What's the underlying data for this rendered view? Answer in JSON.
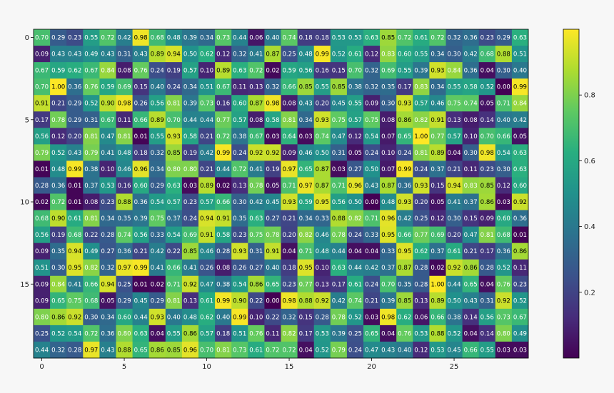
{
  "chart_data": {
    "type": "heatmap",
    "colormap": "viridis",
    "grid": false,
    "xticks": [
      0,
      5,
      10,
      15,
      20,
      25
    ],
    "yticks": [
      0,
      5,
      10,
      15
    ],
    "colorbar": {
      "position": "right",
      "ticks": [
        0.2,
        0.4,
        0.6,
        0.8
      ]
    },
    "values": [
      [
        0.7,
        0.29,
        0.23,
        0.55,
        0.72,
        0.42,
        0.98,
        0.68,
        0.48,
        0.39,
        0.34,
        0.73,
        0.44,
        0.06,
        0.4,
        0.74,
        0.18,
        0.18,
        0.53,
        0.53,
        0.63,
        0.85,
        0.72,
        0.61,
        0.72,
        0.32,
        0.36,
        0.23,
        0.29,
        0.63
      ],
      [
        0.09,
        0.43,
        0.43,
        0.49,
        0.43,
        0.31,
        0.43,
        0.89,
        0.94,
        0.5,
        0.62,
        0.12,
        0.32,
        0.41,
        0.87,
        0.25,
        0.48,
        0.99,
        0.52,
        0.61,
        0.12,
        0.83,
        0.6,
        0.55,
        0.34,
        0.3,
        0.42,
        0.68,
        0.88,
        0.51
      ],
      [
        0.67,
        0.59,
        0.62,
        0.67,
        0.84,
        0.08,
        0.76,
        0.24,
        0.19,
        0.57,
        0.1,
        0.89,
        0.63,
        0.72,
        0.02,
        0.59,
        0.56,
        0.16,
        0.15,
        0.7,
        0.32,
        0.69,
        0.55,
        0.39,
        0.93,
        0.84,
        0.36,
        0.04,
        0.3,
        0.4
      ],
      [
        0.7,
        1.0,
        0.36,
        0.76,
        0.59,
        0.69,
        0.15,
        0.4,
        0.24,
        0.34,
        0.51,
        0.67,
        0.11,
        0.13,
        0.32,
        0.66,
        0.85,
        0.55,
        0.85,
        0.38,
        0.32,
        0.35,
        0.17,
        0.83,
        0.34,
        0.55,
        0.58,
        0.52,
        0.0,
        0.99
      ],
      [
        0.91,
        0.21,
        0.29,
        0.52,
        0.9,
        0.98,
        0.26,
        0.56,
        0.81,
        0.39,
        0.73,
        0.16,
        0.6,
        0.87,
        0.98,
        0.08,
        0.43,
        0.2,
        0.45,
        0.55,
        0.09,
        0.3,
        0.93,
        0.57,
        0.46,
        0.75,
        0.74,
        0.05,
        0.71,
        0.84
      ],
      [
        0.17,
        0.78,
        0.29,
        0.31,
        0.67,
        0.11,
        0.66,
        0.89,
        0.7,
        0.44,
        0.44,
        0.77,
        0.57,
        0.08,
        0.58,
        0.81,
        0.34,
        0.93,
        0.75,
        0.57,
        0.75,
        0.08,
        0.86,
        0.82,
        0.91,
        0.13,
        0.08,
        0.14,
        0.4,
        0.42
      ],
      [
        0.56,
        0.12,
        0.2,
        0.81,
        0.47,
        0.81,
        0.01,
        0.55,
        0.93,
        0.58,
        0.21,
        0.72,
        0.38,
        0.67,
        0.03,
        0.64,
        0.03,
        0.74,
        0.47,
        0.12,
        0.54,
        0.07,
        0.65,
        1.0,
        0.77,
        0.57,
        0.1,
        0.7,
        0.66,
        0.05
      ],
      [
        0.79,
        0.52,
        0.43,
        0.79,
        0.41,
        0.48,
        0.18,
        0.32,
        0.85,
        0.19,
        0.42,
        0.99,
        0.24,
        0.92,
        0.92,
        0.09,
        0.46,
        0.5,
        0.31,
        0.05,
        0.24,
        0.1,
        0.24,
        0.81,
        0.89,
        0.04,
        0.3,
        0.98,
        0.54,
        0.63
      ],
      [
        0.01,
        0.48,
        0.99,
        0.38,
        0.1,
        0.46,
        0.96,
        0.34,
        0.8,
        0.8,
        0.21,
        0.44,
        0.72,
        0.41,
        0.19,
        0.97,
        0.65,
        0.87,
        0.03,
        0.27,
        0.5,
        0.07,
        0.99,
        0.24,
        0.37,
        0.21,
        0.11,
        0.23,
        0.3,
        0.63
      ],
      [
        0.28,
        0.36,
        0.01,
        0.37,
        0.53,
        0.16,
        0.6,
        0.29,
        0.63,
        0.03,
        0.89,
        0.02,
        0.13,
        0.78,
        0.05,
        0.71,
        0.97,
        0.87,
        0.71,
        0.96,
        0.43,
        0.87,
        0.36,
        0.93,
        0.15,
        0.94,
        0.83,
        0.85,
        0.12,
        0.6
      ],
      [
        0.02,
        0.72,
        0.01,
        0.08,
        0.23,
        0.88,
        0.36,
        0.54,
        0.57,
        0.23,
        0.57,
        0.66,
        0.3,
        0.42,
        0.45,
        0.93,
        0.59,
        0.95,
        0.56,
        0.5,
        0.0,
        0.48,
        0.93,
        0.2,
        0.05,
        0.41,
        0.37,
        0.86,
        0.03,
        0.92
      ],
      [
        0.68,
        0.9,
        0.61,
        0.81,
        0.34,
        0.35,
        0.39,
        0.75,
        0.37,
        0.24,
        0.94,
        0.91,
        0.35,
        0.63,
        0.27,
        0.21,
        0.34,
        0.33,
        0.88,
        0.82,
        0.71,
        0.96,
        0.42,
        0.25,
        0.12,
        0.3,
        0.15,
        0.09,
        0.6,
        0.36
      ],
      [
        0.56,
        0.19,
        0.68,
        0.22,
        0.28,
        0.74,
        0.56,
        0.33,
        0.54,
        0.69,
        0.91,
        0.58,
        0.23,
        0.75,
        0.78,
        0.2,
        0.82,
        0.46,
        0.78,
        0.24,
        0.33,
        0.95,
        0.66,
        0.77,
        0.69,
        0.2,
        0.47,
        0.81,
        0.68,
        0.01
      ],
      [
        0.09,
        0.35,
        0.94,
        0.49,
        0.27,
        0.36,
        0.21,
        0.42,
        0.22,
        0.85,
        0.46,
        0.28,
        0.93,
        0.31,
        0.91,
        0.04,
        0.71,
        0.48,
        0.44,
        0.04,
        0.04,
        0.33,
        0.95,
        0.62,
        0.37,
        0.61,
        0.21,
        0.17,
        0.36,
        0.86
      ],
      [
        0.51,
        0.3,
        0.95,
        0.82,
        0.32,
        0.97,
        0.99,
        0.41,
        0.66,
        0.41,
        0.26,
        0.08,
        0.26,
        0.27,
        0.4,
        0.18,
        0.95,
        0.1,
        0.63,
        0.44,
        0.42,
        0.37,
        0.87,
        0.28,
        0.02,
        0.92,
        0.86,
        0.28,
        0.52,
        0.11
      ],
      [
        0.09,
        0.84,
        0.41,
        0.66,
        0.94,
        0.25,
        0.01,
        0.02,
        0.71,
        0.92,
        0.47,
        0.38,
        0.54,
        0.86,
        0.65,
        0.23,
        0.77,
        0.13,
        0.17,
        0.61,
        0.24,
        0.7,
        0.35,
        0.28,
        1.0,
        0.44,
        0.65,
        0.04,
        0.76,
        0.23
      ],
      [
        0.09,
        0.65,
        0.75,
        0.68,
        0.05,
        0.29,
        0.45,
        0.29,
        0.81,
        0.13,
        0.61,
        0.99,
        0.9,
        0.22,
        0.0,
        0.98,
        0.88,
        0.92,
        0.42,
        0.74,
        0.21,
        0.39,
        0.85,
        0.13,
        0.89,
        0.5,
        0.43,
        0.31,
        0.92,
        0.52
      ],
      [
        0.8,
        0.86,
        0.92,
        0.3,
        0.34,
        0.6,
        0.44,
        0.93,
        0.4,
        0.48,
        0.62,
        0.4,
        0.99,
        0.1,
        0.22,
        0.32,
        0.15,
        0.28,
        0.78,
        0.52,
        0.03,
        0.98,
        0.62,
        0.06,
        0.66,
        0.38,
        0.14,
        0.56,
        0.73,
        0.67
      ],
      [
        0.25,
        0.52,
        0.54,
        0.72,
        0.36,
        0.8,
        0.63,
        0.04,
        0.55,
        0.86,
        0.57,
        0.18,
        0.51,
        0.76,
        0.11,
        0.82,
        0.17,
        0.53,
        0.39,
        0.25,
        0.65,
        0.04,
        0.76,
        0.53,
        0.88,
        0.52,
        0.04,
        0.14,
        0.8,
        0.49
      ],
      [
        0.44,
        0.32,
        0.28,
        0.97,
        0.43,
        0.88,
        0.65,
        0.86,
        0.85,
        0.96,
        0.7,
        0.81,
        0.73,
        0.61,
        0.72,
        0.72,
        0.04,
        0.52,
        0.79,
        0.24,
        0.47,
        0.43,
        0.4,
        0.12,
        0.53,
        0.45,
        0.66,
        0.55,
        0.03,
        0.03
      ]
    ]
  }
}
